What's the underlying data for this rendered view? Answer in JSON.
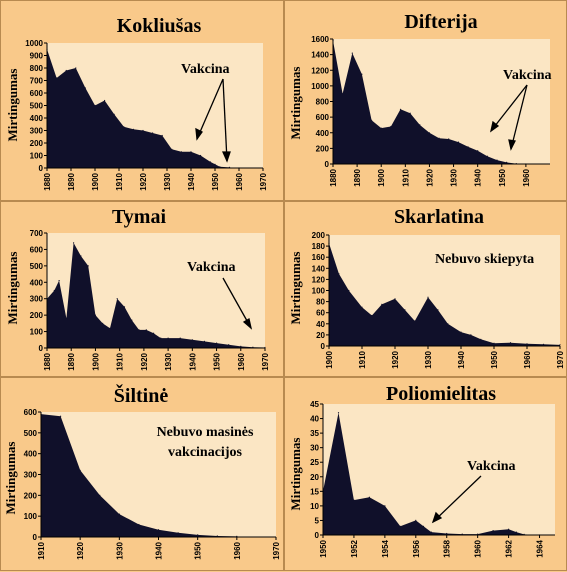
{
  "chart_data": [
    {
      "type": "area",
      "title": "Kokliušas",
      "ylabel": "Mirtingumas",
      "xlim": [
        1880,
        1970
      ],
      "ylim": [
        0,
        1000
      ],
      "xticks": [
        "1880",
        "1890",
        "1900",
        "1910",
        "1920",
        "1930",
        "1940",
        "1950",
        "1960",
        "1970"
      ],
      "yticks": [
        "0",
        "100",
        "200",
        "300",
        "400",
        "500",
        "600",
        "700",
        "800",
        "900",
        "1000"
      ],
      "x": [
        1880,
        1884,
        1888,
        1892,
        1896,
        1900,
        1904,
        1908,
        1912,
        1916,
        1920,
        1924,
        1928,
        1932,
        1936,
        1940,
        1944,
        1948,
        1950,
        1952,
        1956,
        1960
      ],
      "values": [
        950,
        720,
        780,
        800,
        640,
        500,
        540,
        430,
        330,
        310,
        300,
        280,
        260,
        150,
        130,
        130,
        100,
        50,
        30,
        10,
        5,
        0
      ],
      "annotations": [
        "Vakcina"
      ]
    },
    {
      "type": "area",
      "title": "Difterija",
      "ylabel": "Mirtingumas",
      "xlim": [
        1880,
        1970
      ],
      "ylim": [
        0,
        1600
      ],
      "xticks": [
        "1880",
        "1890",
        "1900",
        "1910",
        "1920",
        "1930",
        "1940",
        "1950",
        "1960"
      ],
      "yticks": [
        "0",
        "200",
        "400",
        "600",
        "800",
        "1000",
        "1200",
        "1400",
        "1600"
      ],
      "x": [
        1880,
        1884,
        1888,
        1892,
        1896,
        1900,
        1904,
        1908,
        1912,
        1916,
        1920,
        1924,
        1928,
        1932,
        1936,
        1940,
        1944,
        1948,
        1952,
        1956,
        1960
      ],
      "values": [
        1580,
        900,
        1420,
        1150,
        560,
        460,
        480,
        700,
        650,
        500,
        400,
        330,
        320,
        280,
        220,
        170,
        100,
        50,
        20,
        5,
        0
      ],
      "annotations": [
        "Vakcina"
      ]
    },
    {
      "type": "area",
      "title": "Tymai",
      "ylabel": "Mirtingumas",
      "xlim": [
        1880,
        1970
      ],
      "ylim": [
        0,
        700
      ],
      "xticks": [
        "1880",
        "1890",
        "1900",
        "1910",
        "1920",
        "1930",
        "1940",
        "1950",
        "1960",
        "1970"
      ],
      "yticks": [
        "0",
        "100",
        "200",
        "300",
        "400",
        "500",
        "600",
        "700"
      ],
      "x": [
        1880,
        1883,
        1885,
        1888,
        1891,
        1894,
        1897,
        1900,
        1903,
        1906,
        1909,
        1912,
        1915,
        1918,
        1921,
        1924,
        1927,
        1930,
        1935,
        1940,
        1945,
        1950,
        1955,
        1960,
        1965,
        1970
      ],
      "values": [
        300,
        350,
        410,
        180,
        640,
        560,
        500,
        200,
        150,
        120,
        300,
        250,
        170,
        110,
        110,
        90,
        60,
        60,
        60,
        50,
        40,
        30,
        20,
        10,
        5,
        3
      ],
      "annotations": [
        "Vakcina"
      ]
    },
    {
      "type": "area",
      "title": "Skarlatina",
      "ylabel": "Mirtingumas",
      "xlim": [
        1900,
        1970
      ],
      "ylim": [
        0,
        200
      ],
      "xticks": [
        "1900",
        "1910",
        "1920",
        "1930",
        "1940",
        "1950",
        "1960",
        "1970"
      ],
      "yticks": [
        "0",
        "20",
        "40",
        "60",
        "80",
        "100",
        "120",
        "140",
        "160",
        "180",
        "200"
      ],
      "x": [
        1900,
        1903,
        1906,
        1910,
        1913,
        1916,
        1920,
        1923,
        1926,
        1930,
        1933,
        1936,
        1940,
        1943,
        1946,
        1950,
        1955,
        1960,
        1965,
        1970
      ],
      "values": [
        185,
        130,
        100,
        70,
        55,
        75,
        85,
        65,
        45,
        88,
        65,
        40,
        25,
        20,
        12,
        5,
        6,
        4,
        3,
        2
      ],
      "annotations": [
        "Nebuvo skiepyta"
      ]
    },
    {
      "type": "area",
      "title": "Šiltinė",
      "ylabel": "Mirtingumas",
      "xlim": [
        1910,
        1970
      ],
      "ylim": [
        0,
        600
      ],
      "xticks": [
        "1910",
        "1920",
        "1930",
        "1940",
        "1950",
        "1960",
        "1970"
      ],
      "yticks": [
        "0",
        "100",
        "200",
        "300",
        "400",
        "500",
        "600"
      ],
      "x": [
        1910,
        1915,
        1920,
        1925,
        1930,
        1935,
        1940,
        1945,
        1950,
        1955,
        1960
      ],
      "values": [
        590,
        580,
        320,
        200,
        110,
        60,
        35,
        20,
        10,
        5,
        3
      ],
      "annotations": [
        "Nebuvo masinės",
        "vakcinacijos"
      ]
    },
    {
      "type": "area",
      "title": "Poliomielitas",
      "ylabel": "Mirtingumas",
      "xlim": [
        1950,
        1965
      ],
      "ylim": [
        0,
        45
      ],
      "xticks": [
        "1950",
        "1952",
        "1954",
        "1956",
        "1958",
        "1960",
        "1962",
        "1964"
      ],
      "yticks": [
        "0",
        "5",
        "10",
        "15",
        "20",
        "25",
        "30",
        "35",
        "40",
        "45"
      ],
      "x": [
        1950,
        1951,
        1952,
        1953,
        1954,
        1955,
        1956,
        1956.5,
        1957,
        1958,
        1959,
        1960,
        1961,
        1962,
        1962.5,
        1963,
        1964
      ],
      "values": [
        15,
        42,
        12,
        13,
        10,
        3,
        5,
        3,
        1,
        0.5,
        0.3,
        0.3,
        1.5,
        2,
        1,
        0.2,
        0
      ],
      "annotations": [
        "Vakcina"
      ]
    }
  ]
}
